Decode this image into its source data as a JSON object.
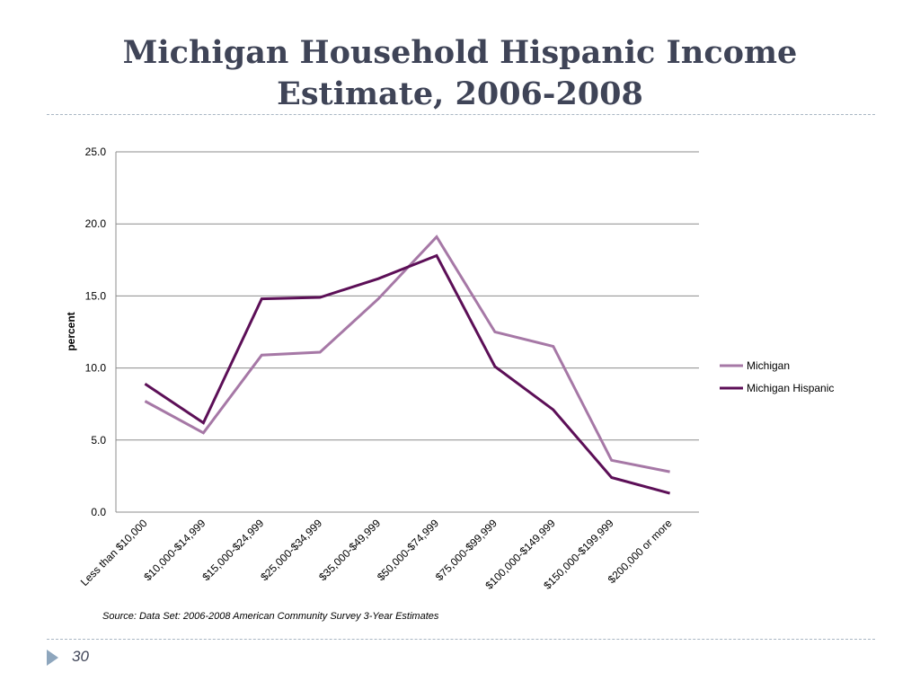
{
  "slide": {
    "title_line1": "Michigan Household Hispanic Income",
    "title_line2": "Estimate, 2006-2008",
    "source": "Source: Data Set: 2006-2008 American Community Survey 3-Year Estimates",
    "page_number": "30",
    "marker_icon": "triangle-bullet-icon"
  },
  "chart_data": {
    "type": "line",
    "title": "",
    "xlabel": "",
    "ylabel": "percent",
    "ylim": [
      0,
      25
    ],
    "yticks": [
      "0.0",
      "5.0",
      "10.0",
      "15.0",
      "20.0",
      "25.0"
    ],
    "grid": "horizontal",
    "legend_position": "right",
    "categories": [
      "Less than $10,000",
      "$10,000-$14,999",
      "$15,000-$24,999",
      "$25,000-$34,999",
      "$35,000-$49,999",
      "$50,000-$74,999",
      "$75,000-$99,999",
      "$100,000-$149,999",
      "$150,000-$199,999",
      "$200,000 or more"
    ],
    "series": [
      {
        "name": "Michigan",
        "color": "#a678a6",
        "values": [
          7.7,
          5.5,
          10.9,
          11.1,
          14.8,
          19.1,
          12.5,
          11.5,
          3.6,
          2.8
        ]
      },
      {
        "name": "Michigan Hispanic",
        "color": "#5c0f57",
        "values": [
          8.9,
          6.2,
          14.8,
          14.9,
          16.2,
          17.8,
          10.1,
          7.1,
          2.4,
          1.3
        ]
      }
    ]
  },
  "colors": {
    "title": "#3f4457",
    "gridline": "#8c8c8c",
    "dash_rule": "#a9b6c3",
    "marker": "#8ea6bd"
  }
}
